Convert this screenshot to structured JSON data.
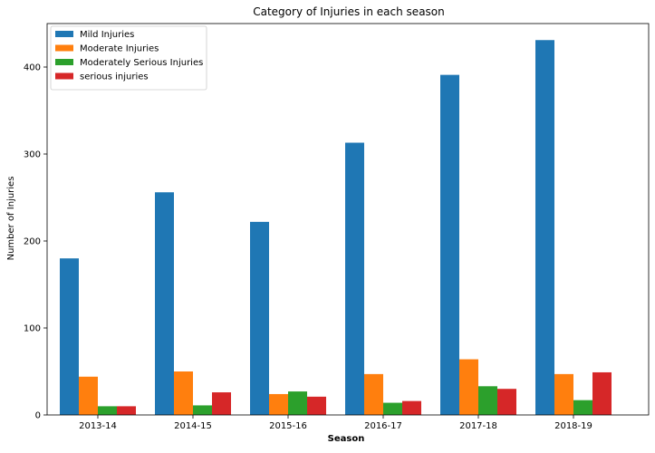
{
  "chart_data": {
    "type": "bar",
    "title": "Category of Injuries in each season",
    "xlabel": "Season",
    "ylabel": "Number of Injuries",
    "categories": [
      "2013-14",
      "2014-15",
      "2015-16",
      "2016-17",
      "2017-18",
      "2018-19"
    ],
    "ylim": [
      0,
      450
    ],
    "yticks": [
      0,
      100,
      200,
      300,
      400
    ],
    "grid": false,
    "legend_position": "top-left",
    "series": [
      {
        "name": "Mild Injuries",
        "color": "#1f77b4",
        "values": [
          180,
          256,
          222,
          313,
          391,
          431
        ]
      },
      {
        "name": "Moderate Injuries",
        "color": "#ff7f0e",
        "values": [
          44,
          50,
          24,
          47,
          64,
          47
        ]
      },
      {
        "name": "Moderately Serious Injuries",
        "color": "#2ca02c",
        "values": [
          10,
          11,
          27,
          14,
          33,
          17
        ]
      },
      {
        "name": "serious injuries",
        "color": "#d62728",
        "values": [
          10,
          26,
          21,
          16,
          30,
          49
        ]
      }
    ]
  }
}
